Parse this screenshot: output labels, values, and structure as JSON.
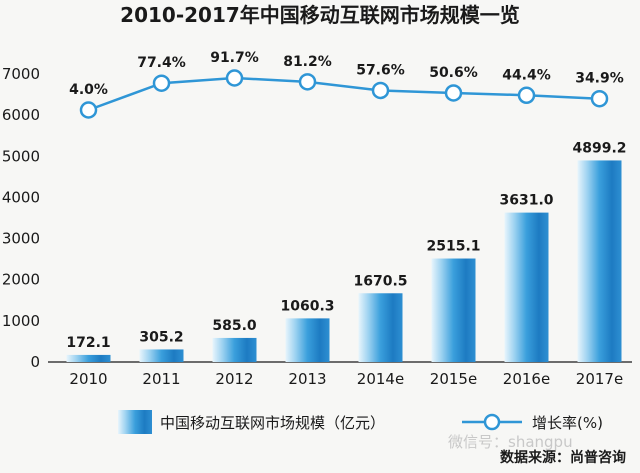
{
  "chart_data": {
    "type": "bar+line",
    "title": "2010-2017年中国移动互联网市场规模一览",
    "categories": [
      "2010",
      "2011",
      "2012",
      "2013",
      "2014e",
      "2015e",
      "2016e",
      "2017e"
    ],
    "series": [
      {
        "name": "中国移动互联网市场规模(亿元)",
        "type": "bar",
        "values": [
          172.1,
          305.2,
          585.0,
          1060.3,
          1670.5,
          2515.1,
          3631.0,
          4899.2
        ],
        "labels": [
          "172.1",
          "305.2",
          "585.0",
          "1060.3",
          "1670.5",
          "2515.1",
          "3631.0",
          "4899.2"
        ]
      },
      {
        "name": "增长率(%)",
        "type": "line",
        "values": [
          4.0,
          77.4,
          91.7,
          81.2,
          57.6,
          50.6,
          44.4,
          34.9
        ],
        "labels": [
          "4.0%",
          "77.4%",
          "91.7%",
          "81.2%",
          "57.6%",
          "50.6%",
          "44.4%",
          "34.9%"
        ]
      }
    ],
    "ylim": [
      0,
      7000
    ],
    "yticks": [
      0,
      1000,
      2000,
      3000,
      4000,
      5000,
      6000,
      7000
    ],
    "legend": [
      "中国移动互联网市场规模（亿元）",
      "增长率(%)"
    ],
    "source": "数据来源：尚普咨询"
  },
  "watermark": "微信号：shangpu",
  "colors": {
    "bar_light": "#e6f4fc",
    "bar_mid": "#3aa0dc",
    "bar_dark": "#1877be",
    "line": "#2f96d6",
    "axis": "#1a1a1a"
  }
}
